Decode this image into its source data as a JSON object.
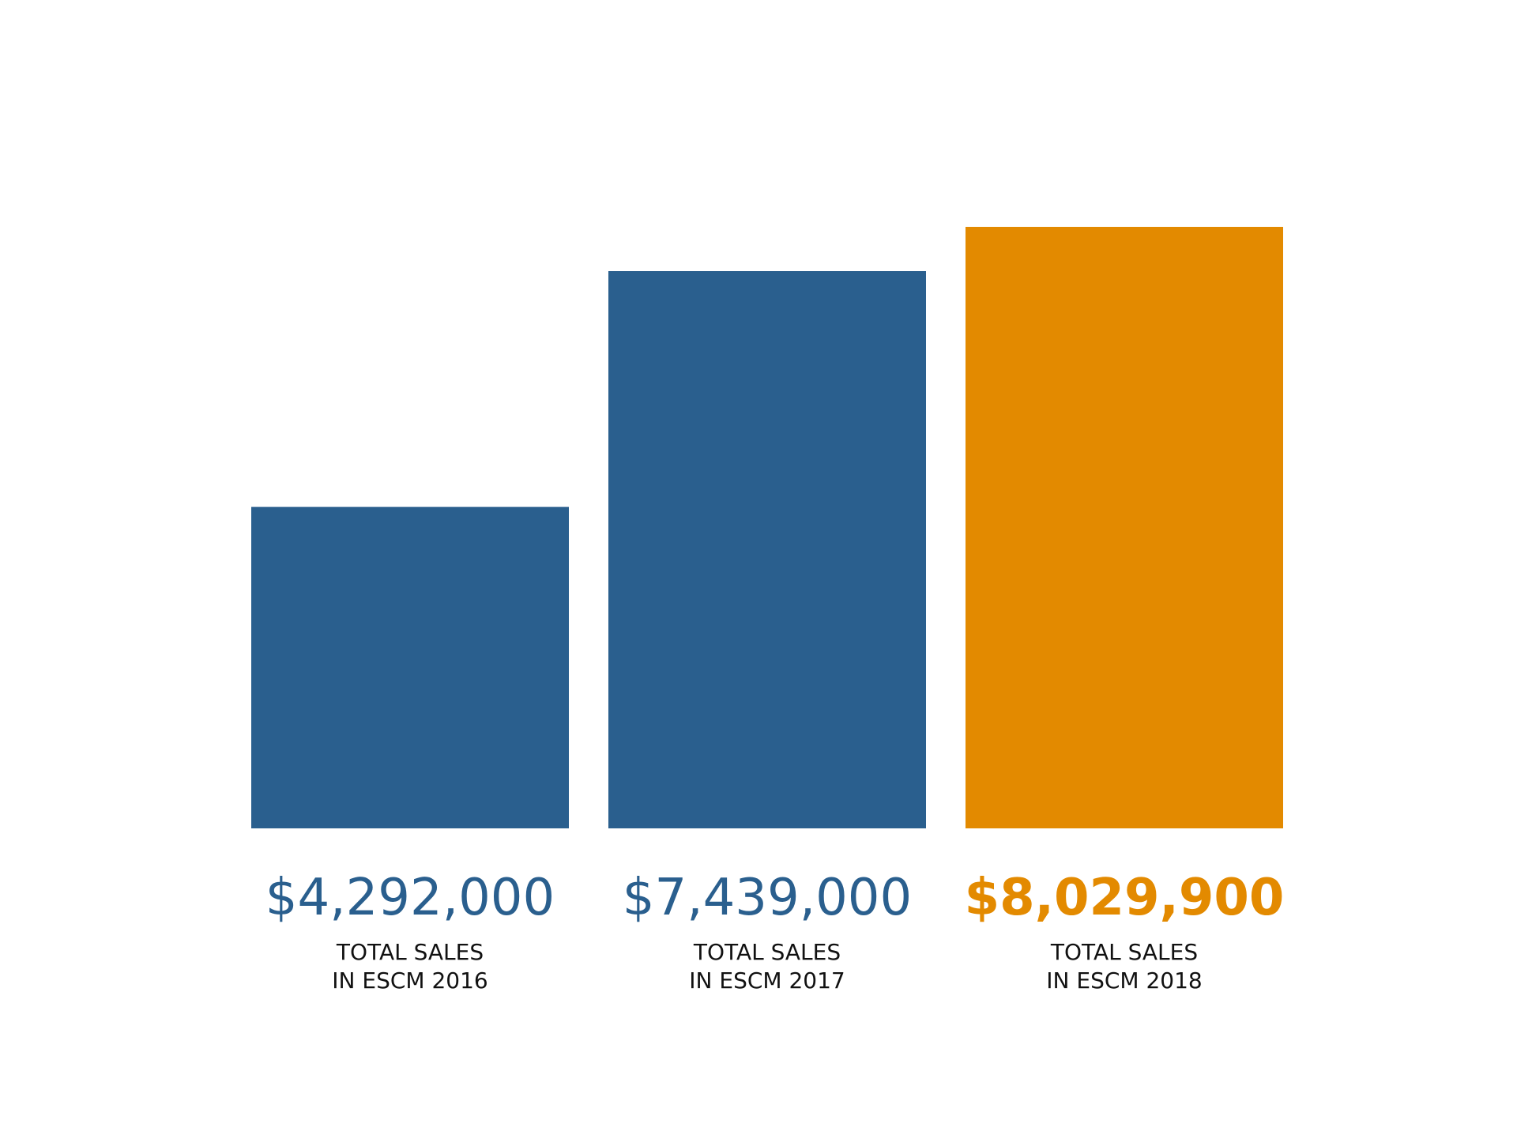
{
  "chart_data": {
    "type": "bar",
    "categories": [
      "TOTAL SALES IN ESCM 2016",
      "TOTAL SALES IN ESCM 2017",
      "TOTAL SALES IN ESCM 2018"
    ],
    "category_lines": [
      [
        "TOTAL SALES",
        "IN ESCM 2016"
      ],
      [
        "TOTAL SALES",
        "IN ESCM 2017"
      ],
      [
        "TOTAL SALES",
        "IN ESCM 2018"
      ]
    ],
    "values": [
      4292000,
      7439000,
      8029900
    ],
    "value_labels": [
      "$4,292,000",
      "$7,439,000",
      "$8,029,900"
    ],
    "colors": [
      "#2a5f8e",
      "#2a5f8e",
      "#e38a00"
    ],
    "highlight_index": 2,
    "ylim": [
      0,
      10000000
    ],
    "grid": false,
    "legend": "none",
    "title": "",
    "xlabel": "",
    "ylabel": ""
  }
}
